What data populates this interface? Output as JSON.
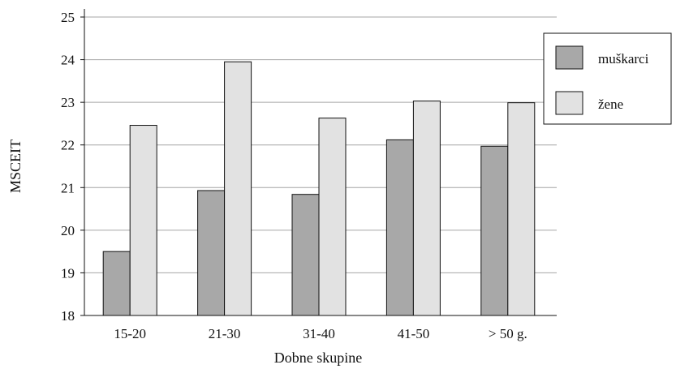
{
  "colors": {
    "muskarci": "#a8a8a8",
    "zene": "#e2e2e2",
    "axis": "#111111",
    "grid": "#a6a6a6",
    "bar_border": "#111111"
  },
  "chart_data": {
    "type": "bar",
    "title": "",
    "xlabel": "Dobne skupine",
    "ylabel": "MSCEIT",
    "categories": [
      "15-20",
      "21-30",
      "31-40",
      "41-50",
      "> 50 g."
    ],
    "ylim": [
      18,
      25
    ],
    "yticks": [
      "18",
      "19",
      "20",
      "21",
      "22",
      "23",
      "24",
      "25"
    ],
    "grid": true,
    "legend_position": "right",
    "series": [
      {
        "name": "muškarci",
        "color": "#a8a8a8",
        "values": [
          19.5,
          20.93,
          20.84,
          22.12,
          21.97
        ]
      },
      {
        "name": "žene",
        "color": "#e2e2e2",
        "values": [
          22.46,
          23.95,
          22.63,
          23.03,
          22.99
        ]
      }
    ]
  }
}
